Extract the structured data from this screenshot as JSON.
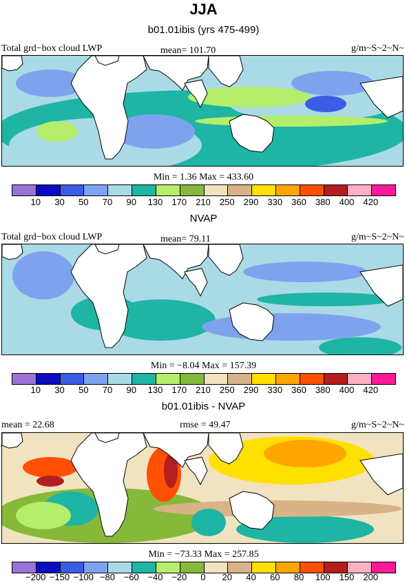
{
  "figure": {
    "title": "JJA",
    "colors_positive": [
      "#9a72d8",
      "#0b0bc6",
      "#3a5de6",
      "#7fa2ee",
      "#aadae6",
      "#1eb5a4",
      "#b4ee6a",
      "#86b83a",
      "#f2e3c0",
      "#d8b388",
      "#ffe000",
      "#ffa500",
      "#ff5005",
      "#b41e1e",
      "#ffb0c4",
      "#ff1a99"
    ],
    "colors_land": "#ffffff"
  },
  "chart_data": [
    {
      "type": "heatmap",
      "panel": "model",
      "title": "b01.01ibis (yrs 475-499)",
      "left_label": "Total grd−box cloud LWP",
      "mean_label": "mean= 101.70",
      "units": "g/m~S~2~N~",
      "minmax": "Min =   1.36 Max = 433.60",
      "levels": [
        "10",
        "30",
        "50",
        "70",
        "90",
        "130",
        "170",
        "210",
        "250",
        "290",
        "330",
        "360",
        "380",
        "400",
        "420"
      ],
      "mean": 101.7,
      "min": 1.36,
      "max": 433.6
    },
    {
      "type": "heatmap",
      "panel": "obs",
      "title": "NVAP",
      "left_label": "Total grd−box cloud LWP",
      "mean_label": "mean=  79.11",
      "units": "g/m~S~2~N~",
      "minmax": "Min =  −8.04 Max = 157.39",
      "levels": [
        "10",
        "30",
        "50",
        "70",
        "90",
        "130",
        "170",
        "210",
        "250",
        "290",
        "330",
        "360",
        "380",
        "400",
        "420"
      ],
      "mean": 79.11,
      "min": -8.04,
      "max": 157.39
    },
    {
      "type": "heatmap",
      "panel": "diff",
      "title": "b01.01ibis - NVAP",
      "mean_label": "mean =  22.68",
      "rmse_label": "rmse =  49.47",
      "units": "g/m~S~2~N~",
      "minmax": "Min = −73.33 Max = 257.85",
      "levels": [
        "−200",
        "−150",
        "−100",
        "−80",
        "−60",
        "−40",
        "−20",
        "0",
        "20",
        "40",
        "60",
        "80",
        "100",
        "150",
        "200"
      ],
      "mean": 22.68,
      "rmse": 49.47,
      "min": -73.33,
      "max": 257.85
    }
  ]
}
